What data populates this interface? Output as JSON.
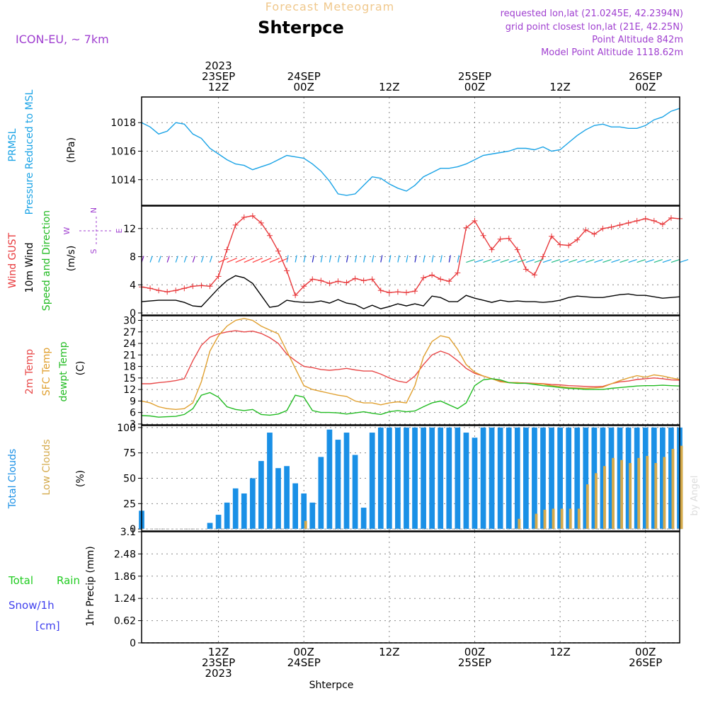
{
  "header": {
    "super_title": "Forecast Meteogram",
    "title": "Shterpce",
    "model": "ICON-EU, ~ 7km",
    "requested": "requested lon,lat (21.0245E, 42.2394N)",
    "grid_point": "grid point closest lon,lat (21E, 42.25N)",
    "point_altitude": "Point Altitude 842m",
    "model_altitude": "Model Point Altitude 1118.62m",
    "footer_location": "Shterpce",
    "credit": "by Angel"
  },
  "colors": {
    "pressure": "#1aa3e6",
    "gust": "#e8383b",
    "wind": "#000000",
    "temp2m": "#e84848",
    "sfc": "#e0a030",
    "dewpt": "#22bb22",
    "total_clouds": "#1a90e6",
    "low_clouds": "#d4aa4c",
    "rain": "#22cc22",
    "snow": "#4040ee",
    "purple": "#a040d0",
    "grid": "#888888"
  },
  "time_axis": {
    "start_hour": 0,
    "end_hour": 63,
    "ticks": [
      {
        "hour": 9,
        "top": [
          "2023",
          "23SEP",
          "12Z"
        ],
        "bottom": [
          "12Z",
          "23SEP",
          "2023"
        ]
      },
      {
        "hour": 19,
        "top": [
          "24SEP",
          "00Z"
        ],
        "bottom": [
          "00Z",
          "24SEP"
        ]
      },
      {
        "hour": 29,
        "top": [
          "12Z"
        ],
        "bottom": [
          "12Z"
        ]
      },
      {
        "hour": 39,
        "top": [
          "25SEP",
          "00Z"
        ],
        "bottom": [
          "00Z",
          "25SEP"
        ]
      },
      {
        "hour": 49,
        "top": [
          "12Z"
        ],
        "bottom": [
          "12Z"
        ]
      },
      {
        "hour": 59,
        "top": [
          "26SEP",
          "00Z"
        ],
        "bottom": [
          "00Z",
          "26SEP"
        ]
      }
    ]
  },
  "chart_data": [
    {
      "type": "line",
      "panel": "pressure",
      "labels": [
        "PRMSL",
        "Pressure Reduced to MSL"
      ],
      "unit": "(hPa)",
      "ylim": [
        1012.2,
        1019.8
      ],
      "yticks": [
        1014,
        1016,
        1018
      ],
      "x": [
        0,
        1,
        2,
        3,
        4,
        5,
        6,
        7,
        8,
        9,
        10,
        11,
        12,
        13,
        14,
        15,
        16,
        17,
        18,
        19,
        20,
        21,
        22,
        23,
        24,
        25,
        26,
        27,
        28,
        29,
        30,
        31,
        32,
        33,
        34,
        35,
        36,
        37,
        38,
        39,
        40,
        41,
        42,
        43,
        44,
        45,
        46,
        47,
        48,
        49,
        50,
        51,
        52,
        53,
        54,
        55,
        56,
        57,
        58,
        59,
        60,
        61,
        62,
        63
      ],
      "series": [
        {
          "values": [
            1018.0,
            1017.7,
            1017.2,
            1017.4,
            1018.0,
            1017.9,
            1017.2,
            1016.9,
            1016.2,
            1015.8,
            1015.4,
            1015.1,
            1015.0,
            1014.7,
            1014.9,
            1015.1,
            1015.4,
            1015.7,
            1015.6,
            1015.5,
            1015.1,
            1014.6,
            1013.9,
            1013.0,
            1012.9,
            1013.0,
            1013.6,
            1014.2,
            1014.1,
            1013.7,
            1013.4,
            1013.2,
            1013.6,
            1014.2,
            1014.5,
            1014.8,
            1014.8,
            1014.9,
            1015.1,
            1015.4,
            1015.7,
            1015.8,
            1015.9,
            1016.0,
            1016.2,
            1016.2,
            1016.1,
            1016.3,
            1016.0,
            1016.1,
            1016.6,
            1017.1,
            1017.5,
            1017.8,
            1017.9,
            1017.7,
            1017.7,
            1017.6,
            1017.6,
            1017.8,
            1018.2,
            1018.4,
            1018.8,
            1019.0
          ]
        }
      ]
    },
    {
      "type": "line",
      "panel": "wind",
      "labels": [
        "Wind GUST",
        "10m Wind",
        "Speed and Direction"
      ],
      "unit": "(m/s)",
      "compass": [
        "N",
        "W",
        "E",
        "S"
      ],
      "ylim": [
        -0.3,
        15.2
      ],
      "yticks": [
        0,
        4,
        8,
        12
      ],
      "x": [
        0,
        1,
        2,
        3,
        4,
        5,
        6,
        7,
        8,
        9,
        10,
        11,
        12,
        13,
        14,
        15,
        16,
        17,
        18,
        19,
        20,
        21,
        22,
        23,
        24,
        25,
        26,
        27,
        28,
        29,
        30,
        31,
        32,
        33,
        34,
        35,
        36,
        37,
        38,
        39,
        40,
        41,
        42,
        43,
        44,
        45,
        46,
        47,
        48,
        49,
        50,
        51,
        52,
        53,
        54,
        55,
        56,
        57,
        58,
        59,
        60,
        61,
        62,
        63
      ],
      "series": [
        {
          "name": "gust",
          "values": [
            3.7,
            3.5,
            3.2,
            3.0,
            3.2,
            3.5,
            3.8,
            3.9,
            3.8,
            5.2,
            9.0,
            12.5,
            13.6,
            13.8,
            12.8,
            11.0,
            8.8,
            6.0,
            2.5,
            3.8,
            4.8,
            4.6,
            4.2,
            4.5,
            4.3,
            4.9,
            4.6,
            4.8,
            3.2,
            2.9,
            3.0,
            2.9,
            3.1,
            5.0,
            5.4,
            4.8,
            4.5,
            5.7,
            12.1,
            13.1,
            11.0,
            9.0,
            10.5,
            10.6,
            9.0,
            6.2,
            5.4,
            8.0,
            10.9,
            9.7,
            9.6,
            10.4,
            11.8,
            11.2,
            12.0,
            12.2,
            12.5,
            12.8,
            13.1,
            13.4,
            13.1,
            12.6,
            13.5,
            13.4
          ]
        },
        {
          "name": "wind",
          "values": [
            1.6,
            1.7,
            1.8,
            1.8,
            1.8,
            1.5,
            1.0,
            0.9,
            2.2,
            3.5,
            4.6,
            5.3,
            5.0,
            4.2,
            2.5,
            0.8,
            1.0,
            1.8,
            1.6,
            1.5,
            1.5,
            1.7,
            1.4,
            1.9,
            1.4,
            1.2,
            0.6,
            1.1,
            0.6,
            0.9,
            1.3,
            1.0,
            1.3,
            1.0,
            2.4,
            2.2,
            1.6,
            1.6,
            2.5,
            2.1,
            1.8,
            1.5,
            1.8,
            1.6,
            1.7,
            1.6,
            1.6,
            1.5,
            1.6,
            1.8,
            2.2,
            2.4,
            2.3,
            2.2,
            2.2,
            2.4,
            2.6,
            2.7,
            2.5,
            2.5,
            2.3,
            2.1,
            2.2,
            2.3
          ]
        }
      ]
    },
    {
      "type": "line",
      "panel": "temperature",
      "labels": [
        "2m Temp",
        "SFC Temp",
        "dewpt Temp"
      ],
      "unit": "(C)",
      "ylim": [
        2.8,
        31.2
      ],
      "yticks": [
        3,
        6,
        9,
        12,
        15,
        18,
        21,
        24,
        27,
        30
      ],
      "x": [
        0,
        1,
        2,
        3,
        4,
        5,
        6,
        7,
        8,
        9,
        10,
        11,
        12,
        13,
        14,
        15,
        16,
        17,
        18,
        19,
        20,
        21,
        22,
        23,
        24,
        25,
        26,
        27,
        28,
        29,
        30,
        31,
        32,
        33,
        34,
        35,
        36,
        37,
        38,
        39,
        40,
        41,
        42,
        43,
        44,
        45,
        46,
        47,
        48,
        49,
        50,
        51,
        52,
        53,
        54,
        55,
        56,
        57,
        58,
        59,
        60,
        61,
        62,
        63
      ],
      "series": [
        {
          "name": "temp2m",
          "values": [
            13.5,
            13.5,
            13.8,
            14.0,
            14.3,
            14.8,
            19.5,
            23.5,
            25.6,
            26.5,
            27.0,
            27.3,
            27.0,
            27.2,
            26.6,
            25.5,
            24.0,
            21.2,
            19.5,
            18.0,
            17.7,
            17.2,
            17.0,
            17.2,
            17.5,
            17.1,
            16.8,
            16.8,
            16.0,
            15.0,
            14.2,
            13.8,
            15.5,
            18.5,
            21.0,
            22.0,
            21.2,
            19.5,
            17.5,
            16.2,
            15.5,
            14.8,
            14.2,
            13.8,
            13.8,
            13.7,
            13.6,
            13.5,
            13.3,
            13.2,
            13.0,
            12.9,
            12.8,
            12.7,
            12.8,
            13.5,
            14.0,
            14.2,
            14.6,
            14.8,
            15.0,
            14.8,
            14.5,
            14.4
          ]
        },
        {
          "name": "sfc",
          "values": [
            9.0,
            8.5,
            7.5,
            7.0,
            6.8,
            7.0,
            8.5,
            14.0,
            22.0,
            26.0,
            28.5,
            30.0,
            30.5,
            30.0,
            28.5,
            27.5,
            26.5,
            22.0,
            17.5,
            13.0,
            12.0,
            11.5,
            11.0,
            10.5,
            10.2,
            9.0,
            8.5,
            8.5,
            8.0,
            8.5,
            8.8,
            8.5,
            13.0,
            20.5,
            24.5,
            26.0,
            25.5,
            22.5,
            18.5,
            16.5,
            15.5,
            14.8,
            14.0,
            13.8,
            13.8,
            13.6,
            13.5,
            13.4,
            13.0,
            12.8,
            12.5,
            12.4,
            12.3,
            12.4,
            12.6,
            13.5,
            14.3,
            15.0,
            15.6,
            15.2,
            15.8,
            15.5,
            15.0,
            14.6
          ]
        },
        {
          "name": "dewpt",
          "values": [
            5.2,
            5.1,
            4.8,
            4.9,
            5.0,
            5.5,
            7.0,
            10.5,
            11.2,
            10.0,
            7.5,
            6.8,
            6.5,
            6.8,
            5.5,
            5.3,
            5.6,
            6.5,
            10.5,
            10.0,
            6.5,
            6.0,
            6.0,
            5.9,
            5.6,
            5.9,
            6.2,
            5.8,
            5.5,
            6.2,
            6.5,
            6.2,
            6.4,
            7.5,
            8.5,
            9.0,
            8.0,
            7.0,
            8.5,
            13.0,
            14.5,
            14.8,
            14.5,
            13.8,
            13.6,
            13.6,
            13.3,
            13.0,
            12.8,
            12.5,
            12.3,
            12.2,
            12.0,
            12.0,
            12.0,
            12.3,
            12.5,
            12.7,
            12.9,
            13.0,
            13.0,
            13.1,
            13.0,
            12.9
          ]
        }
      ]
    },
    {
      "type": "bar",
      "panel": "clouds",
      "labels": [
        "Total Clouds",
        "Low Clouds"
      ],
      "unit": "(%)",
      "ylim": [
        -2,
        102
      ],
      "yticks": [
        0,
        25,
        50,
        75,
        100
      ],
      "x": [
        0,
        1,
        2,
        3,
        4,
        5,
        6,
        7,
        8,
        9,
        10,
        11,
        12,
        13,
        14,
        15,
        16,
        17,
        18,
        19,
        20,
        21,
        22,
        23,
        24,
        25,
        26,
        27,
        28,
        29,
        30,
        31,
        32,
        33,
        34,
        35,
        36,
        37,
        38,
        39,
        40,
        41,
        42,
        43,
        44,
        45,
        46,
        47,
        48,
        49,
        50,
        51,
        52,
        53,
        54,
        55,
        56,
        57,
        58,
        59,
        60,
        61,
        62,
        63
      ],
      "series": [
        {
          "name": "total",
          "values": [
            18,
            0,
            0,
            0,
            0,
            0,
            0,
            0,
            6,
            14,
            26,
            40,
            35,
            50,
            67,
            95,
            60,
            62,
            45,
            35,
            26,
            71,
            98,
            88,
            95,
            73,
            21,
            95,
            100,
            100,
            100,
            100,
            100,
            100,
            100,
            100,
            100,
            100,
            95,
            90,
            100,
            100,
            100,
            100,
            100,
            100,
            100,
            100,
            100,
            100,
            100,
            100,
            100,
            100,
            100,
            100,
            100,
            100,
            100,
            100,
            100,
            100,
            100,
            100
          ]
        },
        {
          "name": "low",
          "values": [
            0,
            0,
            0,
            0,
            0,
            0,
            0,
            0,
            0,
            0,
            0,
            0,
            0,
            0,
            0,
            0,
            0,
            0,
            0,
            8,
            0,
            0,
            0,
            0,
            0,
            0,
            0,
            0,
            0,
            0,
            0,
            0,
            0,
            0,
            0,
            0,
            0,
            0,
            0,
            0,
            0,
            0,
            0,
            0,
            10,
            0,
            15,
            19,
            20,
            20,
            20,
            20,
            44,
            55,
            62,
            70,
            68,
            65,
            70,
            72,
            65,
            71,
            79,
            82
          ]
        }
      ]
    },
    {
      "type": "bar",
      "panel": "precip",
      "labels": [
        "Total",
        "Rain",
        "Snow/1h",
        "[cm]"
      ],
      "unit": "1hr Precip (mm)",
      "ylim": [
        0,
        3.1
      ],
      "yticks": [
        0,
        0.62,
        1.24,
        1.86,
        2.48,
        3.1
      ],
      "x": [
        0,
        1,
        2,
        3,
        4,
        5,
        6,
        7,
        8,
        9,
        10,
        11,
        12,
        13,
        14,
        15,
        16,
        17,
        18,
        19,
        20,
        21,
        22,
        23,
        24,
        25,
        26,
        27,
        28,
        29,
        30,
        31,
        32,
        33,
        34,
        35,
        36,
        37,
        38,
        39,
        40,
        41,
        42,
        43,
        44,
        45,
        46,
        47,
        48,
        49,
        50,
        51,
        52,
        53,
        54,
        55,
        56,
        57,
        58,
        59,
        60,
        61,
        62,
        63
      ],
      "series": [
        {
          "name": "rain",
          "values": [
            0,
            0,
            0,
            0,
            0,
            0,
            0,
            0,
            0,
            0,
            0,
            0,
            0,
            0,
            0,
            0,
            0,
            0,
            0,
            0,
            0,
            0,
            0,
            0,
            0,
            0,
            0,
            0,
            0,
            0,
            0,
            0,
            0,
            0,
            0,
            0,
            0,
            0,
            0,
            0,
            0,
            0,
            0,
            0,
            0,
            0,
            0,
            0,
            0,
            0,
            0,
            0,
            0,
            0,
            0,
            0,
            0,
            0,
            0,
            0,
            0,
            0,
            0,
            0
          ]
        }
      ]
    }
  ]
}
